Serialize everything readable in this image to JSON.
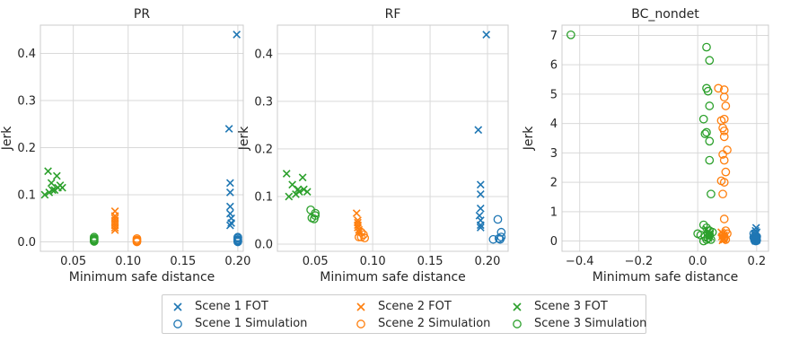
{
  "chart_data": [
    {
      "type": "scatter",
      "title": "PR",
      "xlabel": "Minimum safe distance",
      "ylabel": "Jerk",
      "xlim": [
        0.02,
        0.205
      ],
      "ylim": [
        -0.02,
        0.46
      ],
      "xticks": [
        0.05,
        0.1,
        0.15,
        0.2
      ],
      "xtick_labels": [
        "0.05",
        "0.10",
        "0.15",
        "0.20"
      ],
      "yticks": [
        0.0,
        0.1,
        0.2,
        0.3,
        0.4
      ],
      "ytick_labels": [
        "0.0",
        "0.1",
        "0.2",
        "0.3",
        "0.4"
      ],
      "grid": true,
      "series": [
        {
          "name": "Scene 1 FOT",
          "marker": "x",
          "color": "#1f77b4",
          "x": [
            0.199,
            0.192,
            0.193,
            0.193,
            0.193,
            0.193,
            0.194,
            0.194,
            0.193
          ],
          "y": [
            0.44,
            0.24,
            0.125,
            0.105,
            0.075,
            0.06,
            0.05,
            0.04,
            0.035
          ]
        },
        {
          "name": "Scene 1 Simulation",
          "marker": "o",
          "color": "#1f77b4",
          "x": [
            0.2,
            0.2,
            0.2,
            0.2,
            0.2,
            0.2
          ],
          "y": [
            0.01,
            0.008,
            0.005,
            0.003,
            0.002,
            0.0
          ]
        },
        {
          "name": "Scene 2 FOT",
          "marker": "x",
          "color": "#ff7f0e",
          "x": [
            0.088,
            0.088,
            0.088,
            0.088,
            0.088,
            0.088,
            0.088,
            0.088
          ],
          "y": [
            0.065,
            0.055,
            0.05,
            0.045,
            0.04,
            0.035,
            0.03,
            0.025
          ]
        },
        {
          "name": "Scene 2 Simulation",
          "marker": "o",
          "color": "#ff7f0e",
          "x": [
            0.108,
            0.108,
            0.108,
            0.108
          ],
          "y": [
            0.007,
            0.004,
            0.002,
            0.0
          ]
        },
        {
          "name": "Scene 3 FOT",
          "marker": "x",
          "color": "#2ca02c",
          "x": [
            0.027,
            0.035,
            0.03,
            0.038,
            0.04,
            0.024,
            0.028,
            0.033,
            0.036,
            0.031
          ],
          "y": [
            0.15,
            0.14,
            0.125,
            0.12,
            0.115,
            0.1,
            0.105,
            0.11,
            0.115,
            0.11
          ]
        },
        {
          "name": "Scene 3 Simulation",
          "marker": "o",
          "color": "#2ca02c",
          "x": [
            0.069,
            0.069,
            0.069,
            0.069,
            0.069
          ],
          "y": [
            0.01,
            0.007,
            0.005,
            0.003,
            0.001
          ]
        }
      ]
    },
    {
      "type": "scatter",
      "title": "RF",
      "xlabel": "Minimum safe distance",
      "ylabel": "Jerk",
      "xlim": [
        0.017,
        0.218
      ],
      "ylim": [
        -0.015,
        0.46
      ],
      "xticks": [
        0.05,
        0.1,
        0.15,
        0.2
      ],
      "xtick_labels": [
        "0.05",
        "0.10",
        "0.15",
        "0.20"
      ],
      "yticks": [
        0.0,
        0.1,
        0.2,
        0.3,
        0.4
      ],
      "ytick_labels": [
        "0.0",
        "0.1",
        "0.2",
        "0.3",
        "0.4"
      ],
      "grid": true,
      "series": [
        {
          "name": "Scene 1 FOT",
          "marker": "x",
          "color": "#1f77b4",
          "x": [
            0.199,
            0.192,
            0.194,
            0.194,
            0.194,
            0.193,
            0.194,
            0.194,
            0.194
          ],
          "y": [
            0.44,
            0.24,
            0.125,
            0.105,
            0.075,
            0.06,
            0.05,
            0.04,
            0.035
          ]
        },
        {
          "name": "Scene 1 Simulation",
          "marker": "o",
          "color": "#1f77b4",
          "x": [
            0.209,
            0.212,
            0.212,
            0.21,
            0.205,
            0.211
          ],
          "y": [
            0.052,
            0.025,
            0.015,
            0.012,
            0.01,
            0.01
          ]
        },
        {
          "name": "Scene 2 FOT",
          "marker": "x",
          "color": "#ff7f0e",
          "x": [
            0.086,
            0.087,
            0.087,
            0.087,
            0.087,
            0.088,
            0.088
          ],
          "y": [
            0.065,
            0.05,
            0.045,
            0.04,
            0.035,
            0.03,
            0.025
          ]
        },
        {
          "name": "Scene 2 Simulation",
          "marker": "o",
          "color": "#ff7f0e",
          "x": [
            0.09,
            0.092,
            0.088,
            0.09,
            0.093
          ],
          "y": [
            0.025,
            0.02,
            0.015,
            0.015,
            0.013
          ]
        },
        {
          "name": "Scene 3 FOT",
          "marker": "x",
          "color": "#2ca02c",
          "x": [
            0.025,
            0.039,
            0.03,
            0.035,
            0.04,
            0.043,
            0.027,
            0.033,
            0.036
          ],
          "y": [
            0.148,
            0.14,
            0.125,
            0.115,
            0.115,
            0.11,
            0.1,
            0.105,
            0.11
          ]
        },
        {
          "name": "Scene 3 Simulation",
          "marker": "o",
          "color": "#2ca02c",
          "x": [
            0.046,
            0.05,
            0.05,
            0.047,
            0.049
          ],
          "y": [
            0.072,
            0.065,
            0.06,
            0.055,
            0.053
          ]
        }
      ]
    },
    {
      "type": "scatter",
      "title": "BC_nondet",
      "xlabel": "Minimum safe distance",
      "ylabel": "Jerk",
      "xlim": [
        -0.46,
        0.24
      ],
      "ylim": [
        -0.35,
        7.35
      ],
      "xticks": [
        -0.4,
        -0.2,
        0.0,
        0.2
      ],
      "xtick_labels": [
        "−0.4",
        "−0.2",
        "0.0",
        "0.2"
      ],
      "yticks": [
        0,
        1,
        2,
        3,
        4,
        5,
        6,
        7
      ],
      "ytick_labels": [
        "0",
        "1",
        "2",
        "3",
        "4",
        "5",
        "6",
        "7"
      ],
      "grid": true,
      "series": [
        {
          "name": "Scene 1 FOT",
          "marker": "x",
          "color": "#1f77b4",
          "x": [
            0.198,
            0.196,
            0.2,
            0.193,
            0.195,
            0.197,
            0.199,
            0.192,
            0.198,
            0.194,
            0.2,
            0.196
          ],
          "y": [
            0.45,
            0.35,
            0.3,
            0.25,
            0.2,
            0.15,
            0.12,
            0.1,
            0.08,
            0.05,
            0.03,
            0.0
          ]
        },
        {
          "name": "Scene 1 Simulation",
          "marker": "o",
          "color": "#1f77b4",
          "x": [
            0.19,
            0.195,
            0.2,
            0.19,
            0.198,
            0.192,
            0.196,
            0.2,
            0.193,
            0.197
          ],
          "y": [
            0.25,
            0.2,
            0.15,
            0.12,
            0.1,
            0.08,
            0.05,
            0.03,
            0.02,
            0.0
          ]
        },
        {
          "name": "Scene 2 FOT",
          "marker": "x",
          "color": "#ff7f0e",
          "x": [
            0.08,
            0.085,
            0.09,
            0.082,
            0.088,
            0.086,
            0.09,
            0.084
          ],
          "y": [
            0.3,
            0.25,
            0.2,
            0.15,
            0.1,
            0.08,
            0.05,
            0.02
          ]
        },
        {
          "name": "Scene 2 Simulation",
          "marker": "o",
          "color": "#ff7f0e",
          "x": [
            0.07,
            0.09,
            0.09,
            0.095,
            0.09,
            0.08,
            0.085,
            0.09,
            0.09,
            0.1,
            0.085,
            0.09,
            0.095,
            0.08,
            0.09,
            0.085,
            0.09,
            0.095,
            0.1,
            0.085,
            0.09,
            0.09,
            0.095
          ],
          "y": [
            5.2,
            5.15,
            4.9,
            4.6,
            4.15,
            4.1,
            3.85,
            3.75,
            3.55,
            3.1,
            2.95,
            2.75,
            2.35,
            2.05,
            2.0,
            1.6,
            0.75,
            0.35,
            0.25,
            0.2,
            0.15,
            0.1,
            0.05
          ]
        },
        {
          "name": "Scene 3 FOT",
          "marker": "x",
          "color": "#2ca02c",
          "x": [
            0.03,
            0.035,
            0.04,
            0.038,
            0.042,
            0.036
          ],
          "y": [
            0.4,
            0.3,
            0.25,
            0.2,
            0.15,
            0.1
          ]
        },
        {
          "name": "Scene 3 Simulation",
          "marker": "o",
          "color": "#2ca02c",
          "x": [
            -0.43,
            0.03,
            0.04,
            0.03,
            0.035,
            0.04,
            0.02,
            0.03,
            0.04,
            0.025,
            0.045,
            0.04,
            0.0,
            0.02,
            0.03,
            0.04,
            0.05,
            0.01,
            0.025,
            0.035,
            0.045,
            0.03,
            0.02,
            0.04
          ],
          "y": [
            7.02,
            6.6,
            6.15,
            5.2,
            5.1,
            4.6,
            4.15,
            3.7,
            3.4,
            3.65,
            1.6,
            2.75,
            0.25,
            0.55,
            0.45,
            0.35,
            0.3,
            0.2,
            0.15,
            0.1,
            0.05,
            0.05,
            0.0,
            0.2
          ]
        }
      ]
    }
  ],
  "legend": {
    "placement": "bottom-center",
    "items": [
      {
        "label": "Scene 1 FOT",
        "marker": "x",
        "color": "#1f77b4"
      },
      {
        "label": "Scene 2 FOT",
        "marker": "x",
        "color": "#ff7f0e"
      },
      {
        "label": "Scene 3 FOT",
        "marker": "x",
        "color": "#2ca02c"
      },
      {
        "label": "Scene 1 Simulation",
        "marker": "o",
        "color": "#1f77b4"
      },
      {
        "label": "Scene 2 Simulation",
        "marker": "o",
        "color": "#ff7f0e"
      },
      {
        "label": "Scene 3 Simulation",
        "marker": "o",
        "color": "#2ca02c"
      }
    ]
  }
}
